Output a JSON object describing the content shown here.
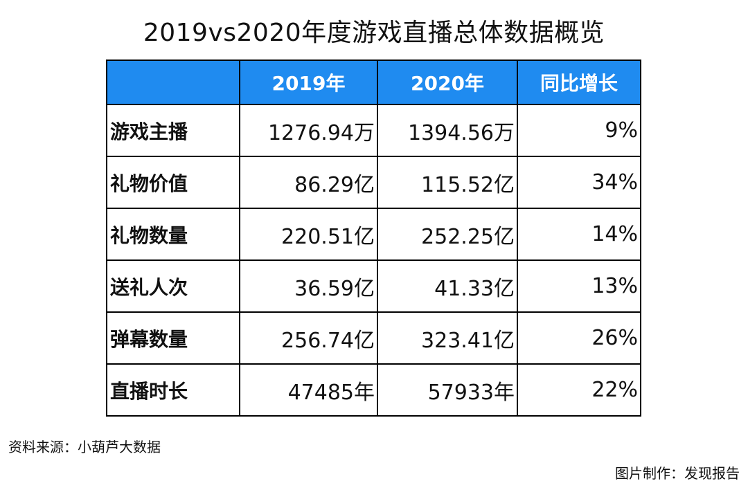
{
  "title": "2019vs2020年度游戏直播总体数据概览",
  "source": "资料来源：小葫芦大数据",
  "credit": "图片制作：发现报告",
  "chart_data": {
    "type": "table",
    "title": "2019vs2020年度游戏直播总体数据概览",
    "columns": [
      "",
      "2019年",
      "2020年",
      "同比增长"
    ],
    "header_color": "#1f8bf0",
    "rows": [
      {
        "metric": "游戏主播",
        "y2019": "1276.94万",
        "y2020": "1394.56万",
        "growth": "9%"
      },
      {
        "metric": "礼物价值",
        "y2019": "86.29亿",
        "y2020": "115.52亿",
        "growth": "34%"
      },
      {
        "metric": "礼物数量",
        "y2019": "220.51亿",
        "y2020": "252.25亿",
        "growth": "14%"
      },
      {
        "metric": "送礼人次",
        "y2019": "36.59亿",
        "y2020": "41.33亿",
        "growth": "13%"
      },
      {
        "metric": "弹幕数量",
        "y2019": "256.74亿",
        "y2020": "323.41亿",
        "growth": "26%"
      },
      {
        "metric": "直播时长",
        "y2019": "47485年",
        "y2020": "57933年",
        "growth": "22%"
      }
    ]
  }
}
